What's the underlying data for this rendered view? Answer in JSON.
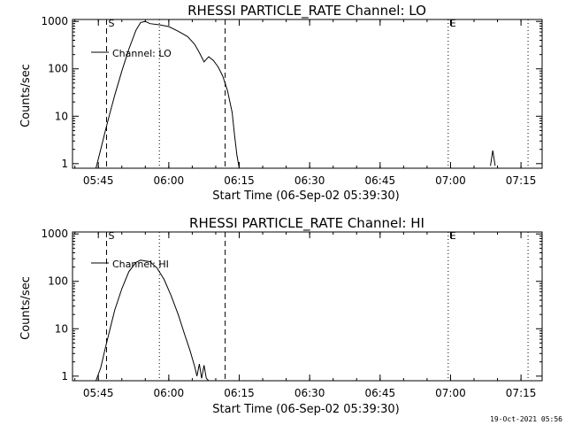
{
  "footer_timestamp": "19-Oct-2021 05:56",
  "chart_data": [
    {
      "type": "line",
      "title": "RHESSI PARTICLE_RATE Channel: LO",
      "xlabel": "Start Time (06-Sep-02 05:39:30)",
      "ylabel": "Counts/sec",
      "legend": "Channel: LO",
      "legend_position": "top-left",
      "yscale": "log",
      "ylim": [
        0.8,
        1100
      ],
      "xlim": [
        "05:39:30",
        "07:19:30"
      ],
      "x_ticks": [
        "05:45",
        "06:00",
        "06:15",
        "06:30",
        "06:45",
        "07:00",
        "07:15"
      ],
      "y_ticks": [
        "1",
        "10",
        "100",
        "1000"
      ],
      "markers": [
        {
          "label": "S",
          "time": "05:46:45",
          "style": "dashed"
        },
        {
          "time": "05:58:00",
          "style": "dotted"
        },
        {
          "time": "06:12:00",
          "style": "dashed"
        },
        {
          "label": "E",
          "time": "06:59:30",
          "style": "dotted"
        },
        {
          "time": "07:16:30",
          "style": "dotted"
        }
      ],
      "series": [
        {
          "name": "Channel: LO",
          "x": [
            "05:44:30",
            "05:45:30",
            "05:46:30",
            "05:47:30",
            "05:48:30",
            "05:50:00",
            "05:51:30",
            "05:53:00",
            "05:54:00",
            "05:55:00",
            "05:56:00",
            "05:58:00",
            "06:00:00",
            "06:02:00",
            "06:04:00",
            "06:05:30",
            "06:06:30",
            "06:07:30",
            "06:08:30",
            "06:09:30",
            "06:10:30",
            "06:11:30",
            "06:12:30",
            "06:13:30",
            "06:14:00",
            "06:14:30",
            "06:15:00"
          ],
          "y": [
            0.8,
            2,
            5,
            12,
            28,
            90,
            260,
            650,
            950,
            1000,
            900,
            850,
            780,
            620,
            480,
            330,
            220,
            140,
            180,
            150,
            110,
            70,
            35,
            12,
            4,
            1.5,
            0.8
          ]
        },
        {
          "name": "spike",
          "x": [
            "07:08:30",
            "07:09:00",
            "07:09:30"
          ],
          "y": [
            0.9,
            1.9,
            0.9
          ]
        }
      ]
    },
    {
      "type": "line",
      "title": "RHESSI PARTICLE_RATE Channel: HI",
      "xlabel": "Start Time (06-Sep-02 05:39:30)",
      "ylabel": "Counts/sec",
      "legend": "Channel: HI",
      "legend_position": "top-left",
      "yscale": "log",
      "ylim": [
        0.8,
        1100
      ],
      "xlim": [
        "05:39:30",
        "07:19:30"
      ],
      "x_ticks": [
        "05:45",
        "06:00",
        "06:15",
        "06:30",
        "06:45",
        "07:00",
        "07:15"
      ],
      "y_ticks": [
        "1",
        "10",
        "100",
        "1000"
      ],
      "markers": [
        {
          "label": "S",
          "time": "05:46:45",
          "style": "dashed"
        },
        {
          "time": "05:58:00",
          "style": "dotted"
        },
        {
          "time": "06:12:00",
          "style": "dashed"
        },
        {
          "label": "E",
          "time": "06:59:30",
          "style": "dotted"
        },
        {
          "time": "07:16:30",
          "style": "dotted"
        }
      ],
      "series": [
        {
          "name": "Channel: HI",
          "x": [
            "05:44:30",
            "05:45:30",
            "05:46:30",
            "05:47:30",
            "05:48:30",
            "05:50:00",
            "05:51:30",
            "05:53:00",
            "05:54:00",
            "05:55:00",
            "05:56:00",
            "05:57:30",
            "05:59:00",
            "06:00:30",
            "06:02:00",
            "06:03:30",
            "06:04:30",
            "06:05:30",
            "06:06:00",
            "06:06:30",
            "06:07:00",
            "06:07:30",
            "06:08:00",
            "06:08:30"
          ],
          "y": [
            0.8,
            1.5,
            4,
            10,
            25,
            70,
            160,
            250,
            280,
            270,
            260,
            190,
            110,
            50,
            20,
            7,
            3.5,
            1.6,
            1.0,
            1.8,
            0.9,
            1.7,
            0.9,
            0.8
          ]
        }
      ]
    }
  ]
}
